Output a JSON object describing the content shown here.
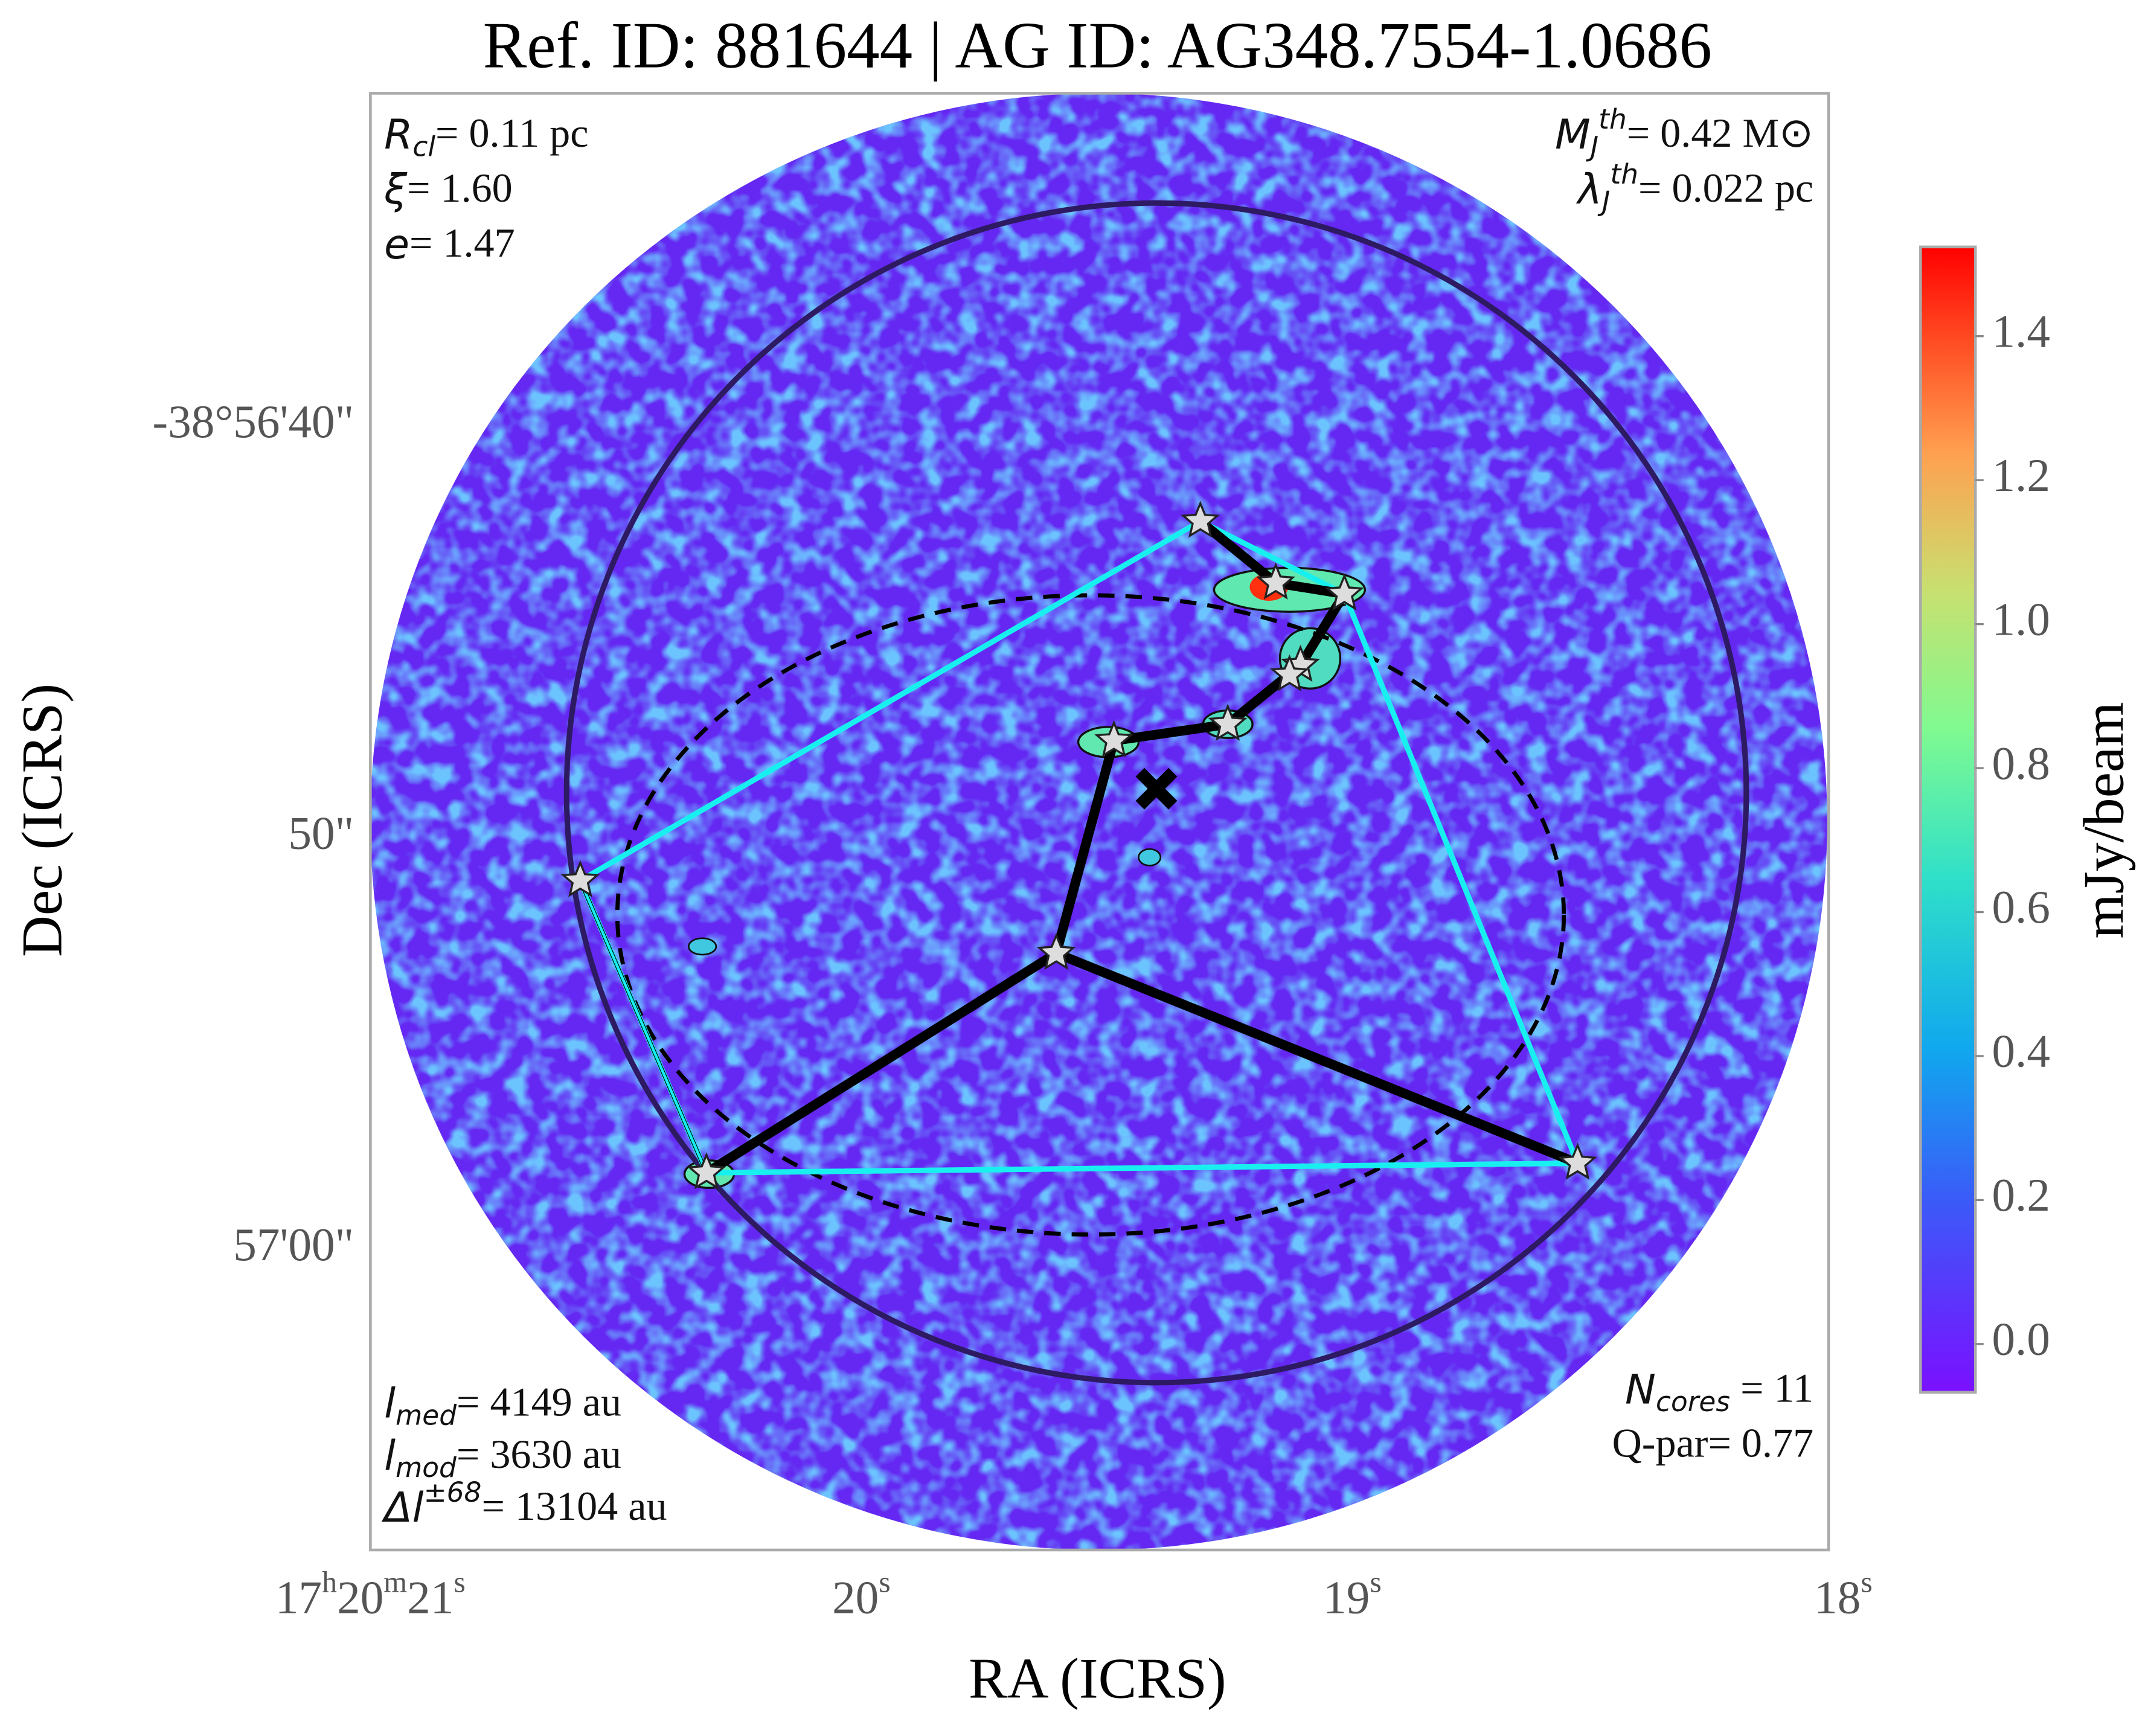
{
  "chart_data": {
    "type": "image",
    "title": "Ref. ID: 881644 | AG ID: AG348.7554-1.0686",
    "xlabel": "RA (ICRS)",
    "ylabel": "Dec (ICRS)",
    "xlim": [
      21,
      18.03
    ],
    "xticks": [
      {
        "value": 21,
        "label": "17h20m21s"
      },
      {
        "value": 20,
        "label": "20s"
      },
      {
        "value": 19,
        "label": "19s"
      },
      {
        "value": 18,
        "label": "18s"
      }
    ],
    "ylim": [
      67.3,
      31.9
    ],
    "yticks": [
      {
        "value": 40,
        "label": "-38°56'40\""
      },
      {
        "value": 50,
        "label": "50\""
      },
      {
        "value": 60,
        "label": "57'00\""
      }
    ],
    "colorbar": {
      "label": "mJy/beam",
      "clim": [
        -0.067,
        1.524
      ],
      "ticks": [
        {
          "value": 0,
          "label": "0.0"
        },
        0.2,
        0.4,
        0.6,
        0.8,
        {
          "value": 1,
          "label": "1.0"
        },
        1.2,
        1.4
      ]
    },
    "annotations": [
      {
        "position": "top-left",
        "lines": [
          {
            "symbol": "R",
            "sub": "cl",
            "text": "= 0.11 pc"
          },
          {
            "symbol": "ξ",
            "text": "= 1.60"
          },
          {
            "symbol": "e",
            "text": "= 1.47"
          }
        ]
      },
      {
        "position": "top-right",
        "lines": [
          {
            "symbol": "M",
            "sub": "J",
            "sup": "th",
            "text": "= 0.42 M⊙"
          },
          {
            "symbol": "λ",
            "sub": "J",
            "sup": "th",
            "text": "= 0.022 pc"
          }
        ]
      },
      {
        "position": "bottom-left",
        "lines": [
          {
            "symbol": "l",
            "sub": "med",
            "text": "= 4149 au"
          },
          {
            "symbol": "l",
            "sub": "mod",
            "text": "= 3630 au"
          },
          {
            "symbol": "Δl",
            "sup": "±68",
            "text": "= 13104 au"
          }
        ]
      },
      {
        "position": "bottom-right",
        "lines": [
          {
            "symbol": "N",
            "sub": "cores",
            "text": " = 11"
          },
          {
            "text": "Q-par= 0.77"
          }
        ]
      }
    ]
  }
}
